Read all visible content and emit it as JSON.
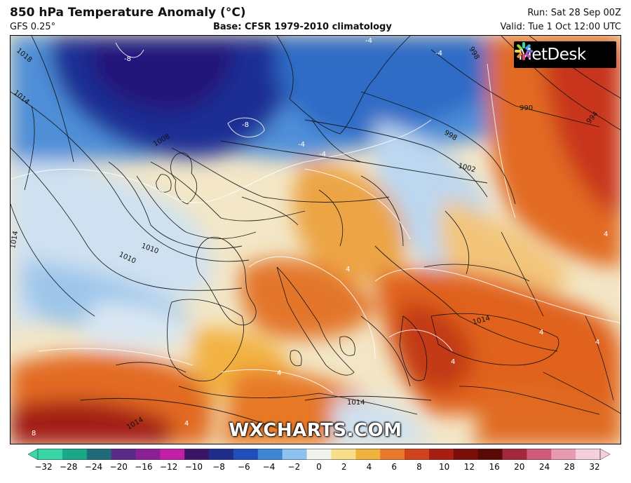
{
  "header": {
    "title": "850 hPa Temperature Anomaly (°C)",
    "model": "GFS 0.25°",
    "base": "Base: CFSR 1979-2010 climatology",
    "run": "Run: Sat 28 Sep 00Z",
    "valid": "Valid: Tue 1 Oct 12:00 UTC"
  },
  "brand": {
    "logo_text": "MetDesk",
    "watermark": "WXCHARTS.COM"
  },
  "colorbar": {
    "ticks": [
      "−32",
      "−28",
      "−24",
      "−20",
      "−16",
      "−12",
      "−10",
      "−8",
      "−6",
      "−4",
      "−2",
      "0",
      "2",
      "4",
      "6",
      "8",
      "10",
      "12",
      "16",
      "20",
      "24",
      "28",
      "32"
    ],
    "colors": [
      "#3ad6a8",
      "#1aa88a",
      "#1f6b78",
      "#5a2a88",
      "#8a1f96",
      "#c21ea8",
      "#3a1566",
      "#1f2c8c",
      "#1f4fb8",
      "#3d86d6",
      "#8ec2ee",
      "#f3f3ee",
      "#f6de8a",
      "#f0b23c",
      "#e8782a",
      "#d1431c",
      "#a81e12",
      "#7a0f0a",
      "#5a0a06",
      "#a3283e",
      "#cf5a7a",
      "#e89ab0",
      "#f5d0dc"
    ],
    "unit": "°C"
  },
  "map": {
    "isobar_labels": [
      "1018",
      "1014",
      "1010",
      "1014",
      "1010",
      "1008",
      "998",
      "1002",
      "990",
      "994",
      "998",
      "1014",
      "1014",
      "1014"
    ],
    "anomaly_labels": [
      "-8",
      "-8",
      "-4",
      "-4",
      "-4",
      "4",
      "4",
      "4",
      "4",
      "4",
      "4",
      "8",
      "-4",
      "4"
    ]
  }
}
